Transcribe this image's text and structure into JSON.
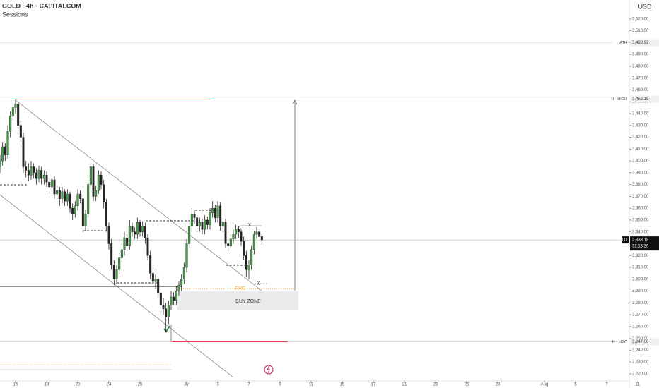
{
  "chart_data": {
    "type": "candlestick",
    "title": "GOLD · 4h · CAPITALCOM",
    "subtitle": "Sessions",
    "y_axis_label": "USD",
    "up_color": "#43a047",
    "down_color": "#222222",
    "ylim": [
      3214,
      3536
    ],
    "xlim": [
      -6,
      240
    ],
    "xticks": [
      {
        "value": 0,
        "label": "16"
      },
      {
        "value": 12,
        "label": "18"
      },
      {
        "value": 24,
        "label": "20"
      },
      {
        "value": 36,
        "label": "24"
      },
      {
        "value": 48,
        "label": "26"
      },
      {
        "value": 66,
        "label": "Jul"
      },
      {
        "value": 78,
        "label": "3"
      },
      {
        "value": 90,
        "label": "7"
      },
      {
        "value": 102,
        "label": "9"
      },
      {
        "value": 114,
        "label": "11"
      },
      {
        "value": 126,
        "label": "15"
      },
      {
        "value": 138,
        "label": "17"
      },
      {
        "value": 150,
        "label": "21"
      },
      {
        "value": 162,
        "label": "23"
      },
      {
        "value": 174,
        "label": "25"
      },
      {
        "value": 186,
        "label": "29"
      },
      {
        "value": 204,
        "label": "Aug"
      },
      {
        "value": 216,
        "label": "5"
      },
      {
        "value": 228,
        "label": "7"
      },
      {
        "value": 240,
        "label": "11"
      }
    ],
    "yticks": [
      {
        "value": 3220,
        "label": "3,220.00"
      },
      {
        "value": 3230,
        "label": "3,230.00"
      },
      {
        "value": 3240,
        "label": "3,240.00"
      },
      {
        "value": 3250,
        "label": "3,250.00"
      },
      {
        "value": 3260,
        "label": "3,260.00"
      },
      {
        "value": 3270,
        "label": "3,270.00"
      },
      {
        "value": 3280,
        "label": "3,280.00"
      },
      {
        "value": 3290,
        "label": "3,290.00"
      },
      {
        "value": 3300,
        "label": "3,300.00"
      },
      {
        "value": 3310,
        "label": "3,310.00"
      },
      {
        "value": 3320,
        "label": "3,320.00"
      },
      {
        "value": 3330,
        "label": "3,330.00"
      },
      {
        "value": 3340,
        "label": "3,340.00"
      },
      {
        "value": 3350,
        "label": "3,350.00"
      },
      {
        "value": 3360,
        "label": "3,360.00"
      },
      {
        "value": 3370,
        "label": "3,370.00"
      },
      {
        "value": 3380,
        "label": "3,380.00"
      },
      {
        "value": 3390,
        "label": "3,390.00"
      },
      {
        "value": 3400,
        "label": "3,400.00"
      },
      {
        "value": 3410,
        "label": "3,410.00"
      },
      {
        "value": 3420,
        "label": "3,420.00"
      },
      {
        "value": 3430,
        "label": "3,430.00"
      },
      {
        "value": 3440,
        "label": "3,440.00"
      },
      {
        "value": 3450,
        "label": "3,450.00"
      },
      {
        "value": 3460,
        "label": "3,460.00"
      },
      {
        "value": 3470,
        "label": "3,470.00"
      },
      {
        "value": 3480,
        "label": "3,480.00"
      },
      {
        "value": 3490,
        "label": "3,490.00"
      },
      {
        "value": 3500,
        "label": "3,500.00"
      },
      {
        "value": 3510,
        "label": "3,510.00"
      },
      {
        "value": 3520,
        "label": "3,520.00"
      }
    ],
    "price_labels": [
      {
        "name": "ATH",
        "value": 3499.92,
        "label": "3,499.92"
      },
      {
        "name": "H - HIGH",
        "value": 3452.19,
        "label": "3,452.19"
      },
      {
        "name": "GOLD",
        "value": 3333.18,
        "label": "3,333.18",
        "countdown": "32:13:20"
      },
      {
        "name": "H - LOW",
        "value": 3247.06,
        "label": "3,247.06"
      }
    ],
    "annotations": [
      "FVG",
      "BUY ZONE",
      "X",
      "X"
    ],
    "x": [
      -6,
      -5,
      -4,
      -3,
      -2,
      -1,
      0,
      1,
      2,
      3,
      4,
      5,
      6,
      7,
      8,
      9,
      10,
      11,
      12,
      13,
      14,
      15,
      16,
      17,
      18,
      19,
      20,
      21,
      22,
      23,
      24,
      25,
      26,
      27,
      28,
      29,
      30,
      31,
      32,
      33,
      34,
      35,
      36,
      37,
      38,
      39,
      40,
      41,
      42,
      43,
      44,
      45,
      46,
      47,
      48,
      49,
      50,
      51,
      52,
      53,
      54,
      55,
      56,
      57,
      58,
      59,
      60,
      61,
      62,
      63,
      64,
      65,
      66,
      67,
      68,
      69,
      70,
      71,
      72,
      73,
      74,
      75,
      76,
      77,
      78,
      79,
      80,
      81,
      82,
      83,
      84,
      85,
      86,
      87,
      88,
      89,
      90,
      91,
      92,
      93,
      94,
      95
    ],
    "ohlc": [
      [
        3395,
        3405,
        3390,
        3400
      ],
      [
        3400,
        3416,
        3396,
        3412
      ],
      [
        3412,
        3415,
        3400,
        3405
      ],
      [
        3405,
        3430,
        3402,
        3425
      ],
      [
        3425,
        3442,
        3420,
        3438
      ],
      [
        3438,
        3450,
        3434,
        3445
      ],
      [
        3445,
        3452.19,
        3440,
        3448
      ],
      [
        3448,
        3450,
        3425,
        3430
      ],
      [
        3430,
        3434,
        3416,
        3420
      ],
      [
        3420,
        3424,
        3390,
        3395
      ],
      [
        3395,
        3400,
        3386,
        3392
      ],
      [
        3392,
        3398,
        3383,
        3388
      ],
      [
        3388,
        3400,
        3384,
        3395
      ],
      [
        3395,
        3398,
        3385,
        3390
      ],
      [
        3390,
        3394,
        3380,
        3385
      ],
      [
        3385,
        3396,
        3382,
        3392
      ],
      [
        3392,
        3395,
        3380,
        3385
      ],
      [
        3385,
        3392,
        3380,
        3388
      ],
      [
        3388,
        3391,
        3378,
        3382
      ],
      [
        3382,
        3386,
        3372,
        3378
      ],
      [
        3378,
        3388,
        3374,
        3384
      ],
      [
        3384,
        3387,
        3368,
        3372
      ],
      [
        3372,
        3380,
        3368,
        3375
      ],
      [
        3375,
        3378,
        3362,
        3368
      ],
      [
        3368,
        3378,
        3364,
        3374
      ],
      [
        3374,
        3376,
        3362,
        3366
      ],
      [
        3366,
        3376,
        3362,
        3372
      ],
      [
        3372,
        3374,
        3356,
        3360
      ],
      [
        3360,
        3364,
        3350,
        3355
      ],
      [
        3355,
        3366,
        3352,
        3362
      ],
      [
        3362,
        3376,
        3358,
        3372
      ],
      [
        3372,
        3375,
        3364,
        3368
      ],
      [
        3368,
        3371,
        3340,
        3345
      ],
      [
        3345,
        3359,
        3341,
        3355
      ],
      [
        3355,
        3384,
        3352,
        3380
      ],
      [
        3380,
        3398,
        3376,
        3395
      ],
      [
        3395,
        3397,
        3366,
        3370
      ],
      [
        3370,
        3379,
        3366,
        3375
      ],
      [
        3375,
        3392,
        3372,
        3388
      ],
      [
        3388,
        3391,
        3376,
        3380
      ],
      [
        3380,
        3384,
        3360,
        3365
      ],
      [
        3365,
        3368,
        3340,
        3345
      ],
      [
        3345,
        3348,
        3325,
        3330
      ],
      [
        3330,
        3334,
        3308,
        3312
      ],
      [
        3312,
        3316,
        3295,
        3300
      ],
      [
        3300,
        3312,
        3296,
        3308
      ],
      [
        3308,
        3322,
        3304,
        3318
      ],
      [
        3318,
        3330,
        3314,
        3325
      ],
      [
        3325,
        3340,
        3320,
        3335
      ],
      [
        3335,
        3338,
        3324,
        3328
      ],
      [
        3328,
        3350,
        3325,
        3345
      ],
      [
        3345,
        3348,
        3336,
        3340
      ],
      [
        3340,
        3344,
        3334,
        3338
      ],
      [
        3338,
        3352,
        3334,
        3348
      ],
      [
        3348,
        3350,
        3336,
        3340
      ],
      [
        3340,
        3349,
        3336,
        3345
      ],
      [
        3345,
        3348,
        3330,
        3335
      ],
      [
        3335,
        3338,
        3316,
        3320
      ],
      [
        3320,
        3324,
        3300,
        3305
      ],
      [
        3305,
        3310,
        3293,
        3298
      ],
      [
        3298,
        3304,
        3292,
        3300
      ],
      [
        3300,
        3303,
        3284,
        3288
      ],
      [
        3288,
        3292,
        3272,
        3278
      ],
      [
        3278,
        3284,
        3270,
        3275
      ],
      [
        3275,
        3280,
        3255,
        3268
      ],
      [
        3268,
        3282,
        3262,
        3278
      ],
      [
        3278,
        3290,
        3274,
        3285
      ],
      [
        3285,
        3289,
        3278,
        3282
      ],
      [
        3282,
        3294,
        3278,
        3290
      ],
      [
        3290,
        3298,
        3286,
        3295
      ],
      [
        3295,
        3304,
        3290,
        3300
      ],
      [
        3300,
        3314,
        3296,
        3310
      ],
      [
        3310,
        3334,
        3306,
        3330
      ],
      [
        3330,
        3349,
        3326,
        3345
      ],
      [
        3345,
        3360,
        3340,
        3355
      ],
      [
        3355,
        3358,
        3347,
        3352
      ],
      [
        3352,
        3355,
        3340,
        3345
      ],
      [
        3345,
        3352,
        3340,
        3348
      ],
      [
        3348,
        3351,
        3338,
        3342
      ],
      [
        3342,
        3354,
        3338,
        3350
      ],
      [
        3350,
        3353,
        3342,
        3346
      ],
      [
        3346,
        3360,
        3342,
        3356
      ],
      [
        3356,
        3366,
        3352,
        3360
      ],
      [
        3360,
        3363,
        3348,
        3352
      ],
      [
        3352,
        3366,
        3348,
        3362
      ],
      [
        3362,
        3365,
        3341,
        3345
      ],
      [
        3345,
        3352,
        3340,
        3348
      ],
      [
        3348,
        3351,
        3326,
        3330
      ],
      [
        3330,
        3334,
        3322,
        3328
      ],
      [
        3328,
        3338,
        3324,
        3334
      ],
      [
        3334,
        3342,
        3330,
        3338
      ],
      [
        3338,
        3346,
        3334,
        3342
      ],
      [
        3342,
        3345,
        3335,
        3340
      ],
      [
        3340,
        3343,
        3328,
        3332
      ],
      [
        3332,
        3336,
        3316,
        3320
      ],
      [
        3320,
        3324,
        3302,
        3308
      ],
      [
        3308,
        3316,
        3300,
        3312
      ],
      [
        3312,
        3328,
        3308,
        3325
      ],
      [
        3325,
        3341,
        3321,
        3338
      ],
      [
        3338,
        3344,
        3334,
        3340
      ],
      [
        3340,
        3343,
        3332,
        3336
      ],
      [
        3336,
        3339,
        3329,
        3333.18
      ]
    ]
  }
}
